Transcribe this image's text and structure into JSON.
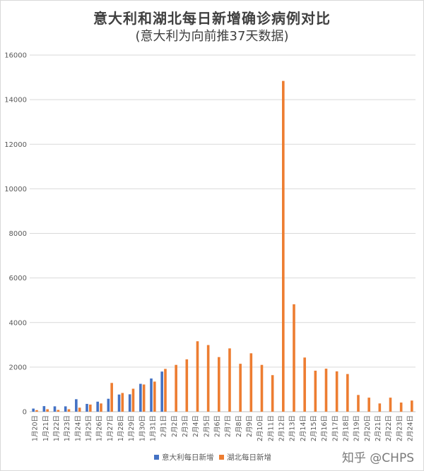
{
  "chart_data": {
    "type": "bar",
    "title": "意大利和湖北每日新增确诊病例对比",
    "subtitle": "(意大利为向前推37天数据)",
    "xlabel": "",
    "ylabel": "",
    "ylim": [
      0,
      16000
    ],
    "yticks": [
      0,
      2000,
      4000,
      6000,
      8000,
      10000,
      12000,
      14000,
      16000
    ],
    "grid": true,
    "legend_position": "bottom",
    "categories": [
      "1月20日",
      "1月21日",
      "1月22日",
      "1月23日",
      "1月24日",
      "1月25日",
      "1月26日",
      "1月27日",
      "1月28日",
      "1月29日",
      "1月30日",
      "1月31日",
      "2月1日",
      "2月2日",
      "2月3日",
      "2月4日",
      "2月5日",
      "2月6日",
      "2月7日",
      "2月8日",
      "2月9日",
      "2月10日",
      "2月11日",
      "2月12日",
      "2月13日",
      "2月14日",
      "2月15日",
      "2月16日",
      "2月17日",
      "2月18日",
      "2月19日",
      "2月20日",
      "2月21日",
      "2月22日",
      "2月23日",
      "2月24日"
    ],
    "series": [
      {
        "name": "意大利每日新增",
        "color": "#4472c4",
        "values": [
          140,
          250,
          240,
          240,
          560,
          350,
          450,
          580,
          770,
          780,
          1250,
          1490,
          1800,
          null,
          null,
          null,
          null,
          null,
          null,
          null,
          null,
          null,
          null,
          null,
          null,
          null,
          null,
          null,
          null,
          null,
          null,
          null,
          null,
          null,
          null,
          null
        ]
      },
      {
        "name": "湖北每日新增",
        "color": "#ed7d31",
        "values": [
          70,
          110,
          80,
          110,
          180,
          320,
          370,
          1290,
          840,
          1030,
          1220,
          1350,
          1920,
          2100,
          2350,
          3160,
          2990,
          2450,
          2840,
          2150,
          2620,
          2100,
          1640,
          14840,
          4820,
          2430,
          1840,
          1930,
          1810,
          1690,
          750,
          630,
          370,
          630,
          410,
          500
        ]
      }
    ]
  },
  "watermark": "知乎 @CHPS"
}
